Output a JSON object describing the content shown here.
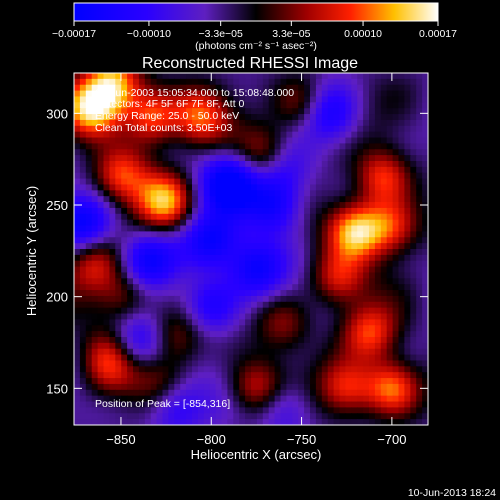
{
  "chart_data": {
    "type": "heatmap",
    "title": "Reconstructed RHESSI Image",
    "xlabel": "Heliocentric X (arcsec)",
    "ylabel": "Heliocentric Y (arcsec)",
    "xlim": [
      -876,
      -680
    ],
    "ylim": [
      130,
      322
    ],
    "x_ticks": [
      -850,
      -800,
      -750,
      -700
    ],
    "y_ticks": [
      150,
      200,
      250,
      300
    ],
    "colorbar": {
      "range": [
        -0.00017,
        0.00017
      ],
      "ticks": [
        "-0.00017",
        "-0.00010",
        "-3.3e-05",
        "3.3e-05",
        "0.00010",
        "0.00017"
      ],
      "unit_label": "(photons cm⁻² s⁻¹ asec⁻²)"
    },
    "annotations": {
      "time": "10-Jun-2003 15:05:34.000 to 15:08:48.000",
      "detectors": "Detectors: 4F 5F 6F 7F 8F, Att 0",
      "energy": "Energy Range: 25.0 - 50.0 keV",
      "clean": "Clean    Total counts: 3.50E+03",
      "peak": "Position of Peak = [-854,316]"
    },
    "footer_timestamp": "10-Jun-2013 18:24",
    "blobs": [
      {
        "x": -866,
        "y": 302,
        "amp": 0.00017
      },
      {
        "x": -854,
        "y": 316,
        "amp": 0.00017
      },
      {
        "x": -850,
        "y": 266,
        "amp": 0.00012
      },
      {
        "x": -833,
        "y": 298,
        "amp": 0.00014
      },
      {
        "x": -826,
        "y": 252,
        "amp": 0.00015
      },
      {
        "x": -806,
        "y": 298,
        "amp": 0.00012
      },
      {
        "x": -770,
        "y": 278,
        "amp": 0.0001
      },
      {
        "x": -750,
        "y": 305,
        "amp": 9e-05
      },
      {
        "x": -720,
        "y": 236,
        "amp": 0.00017
      },
      {
        "x": -705,
        "y": 265,
        "amp": 0.00013
      },
      {
        "x": -700,
        "y": 238,
        "amp": 0.00012
      },
      {
        "x": -730,
        "y": 210,
        "amp": 0.00011
      },
      {
        "x": -712,
        "y": 180,
        "amp": 0.00012
      },
      {
        "x": -700,
        "y": 150,
        "amp": 0.00015
      },
      {
        "x": -725,
        "y": 150,
        "amp": 0.00012
      },
      {
        "x": -760,
        "y": 185,
        "amp": 8e-05
      },
      {
        "x": -775,
        "y": 150,
        "amp": 0.00011
      },
      {
        "x": -820,
        "y": 178,
        "amp": 8e-05
      },
      {
        "x": -865,
        "y": 218,
        "amp": 0.0001
      },
      {
        "x": -848,
        "y": 200,
        "amp": 9e-05
      },
      {
        "x": -856,
        "y": 160,
        "amp": 8e-05
      },
      {
        "x": -858,
        "y": 170,
        "amp": 6e-05
      },
      {
        "x": -829,
        "y": 153,
        "amp": 6e-05
      },
      {
        "x": -790,
        "y": 262,
        "amp": -0.00015
      },
      {
        "x": -800,
        "y": 230,
        "amp": -0.00012
      },
      {
        "x": -765,
        "y": 250,
        "amp": -0.00012
      },
      {
        "x": -775,
        "y": 215,
        "amp": -0.00012
      },
      {
        "x": -800,
        "y": 195,
        "amp": -0.0001
      },
      {
        "x": -840,
        "y": 175,
        "amp": -0.0001
      },
      {
        "x": -820,
        "y": 140,
        "amp": -9e-05
      },
      {
        "x": -760,
        "y": 140,
        "amp": -8e-05
      },
      {
        "x": -870,
        "y": 240,
        "amp": -0.00012
      },
      {
        "x": -835,
        "y": 220,
        "amp": -0.00012
      },
      {
        "x": -735,
        "y": 300,
        "amp": -0.0001
      },
      {
        "x": -760,
        "y": 270,
        "amp": -8e-05
      }
    ]
  }
}
